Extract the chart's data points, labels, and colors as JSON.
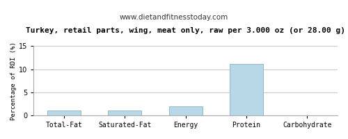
{
  "title": "Turkey, retail parts, wing, meat only, raw per 3.000 oz (or 28.00 g)",
  "subtitle": "www.dietandfitnesstoday.com",
  "ylabel": "Percentage of RDI (%)",
  "categories": [
    "Total-Fat",
    "Saturated-Fat",
    "Energy",
    "Protein",
    "Carbohydrate"
  ],
  "values": [
    1.0,
    1.0,
    2.0,
    11.1,
    0.0
  ],
  "bar_color": "#b8d8e8",
  "bar_edge_color": "#90b8cc",
  "ylim": [
    0,
    15
  ],
  "yticks": [
    0,
    5,
    10,
    15
  ],
  "background_color": "#ffffff",
  "plot_bg_color": "#ffffff",
  "grid_color": "#cccccc",
  "title_fontsize": 8.0,
  "subtitle_fontsize": 7.5,
  "ylabel_fontsize": 6.5,
  "tick_fontsize": 7.0,
  "bar_width": 0.55
}
